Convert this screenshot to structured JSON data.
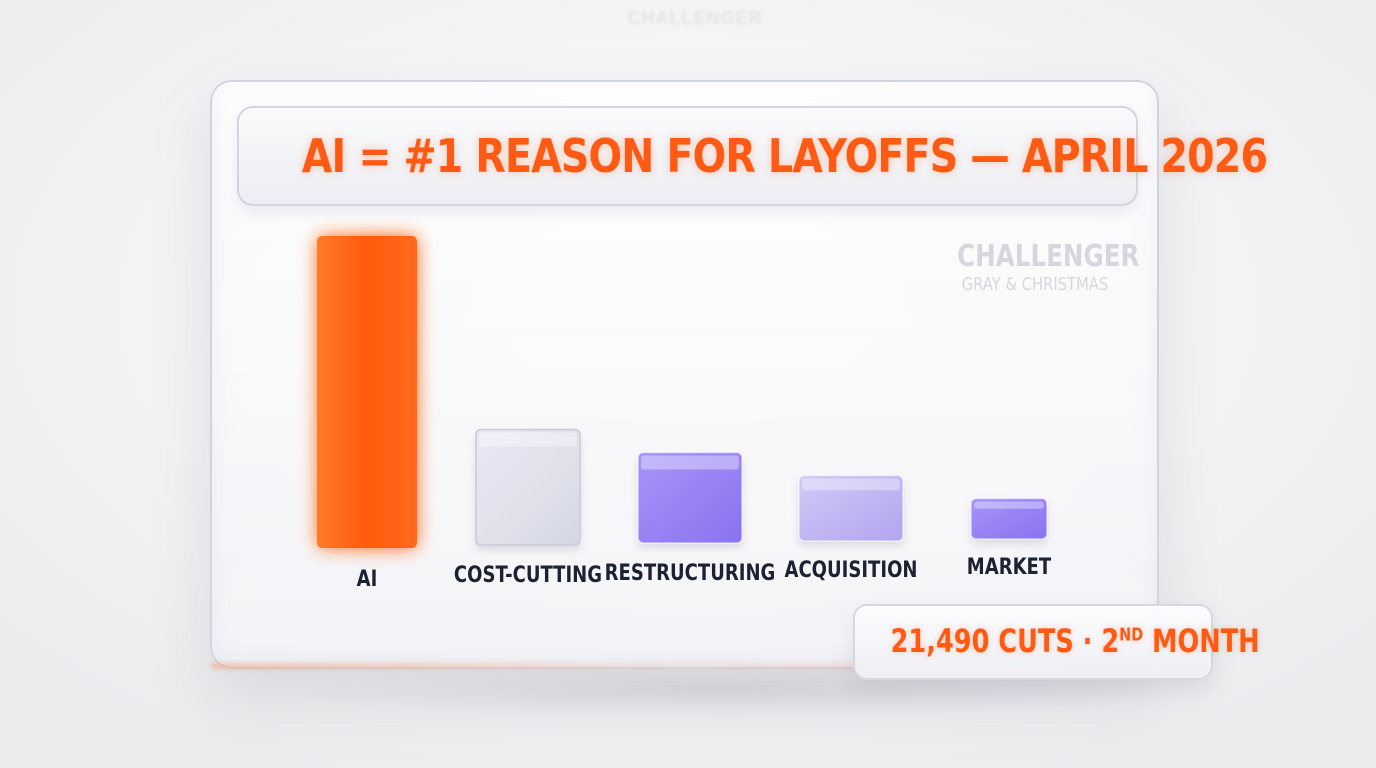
{
  "header": {
    "title": "AI = #1 REASON FOR LAYOFFS — APRIL 2026",
    "ghost_logo": "CHALLENGER"
  },
  "brand": {
    "line1": "CHALLENGER",
    "line2": "GRAY & CHRISTMAS"
  },
  "callout": {
    "main": "21,490 CUTS · 2",
    "superscript": "ND",
    "suffix": " MONTH"
  },
  "colors": {
    "accent": "#ff5a14",
    "ai_bar": "#ff5a0a",
    "purple_bar": "#9a82f5",
    "light_purple_bar": "#c3b8f2",
    "glass_bar": "#dcdce8",
    "label": "#1c2233"
  },
  "chart_data": {
    "type": "bar",
    "title": "AI = #1 REASON FOR LAYOFFS — APRIL 2026",
    "xlabel": "",
    "ylabel": "",
    "categories": [
      "AI",
      "COST-CUTTING",
      "RESTRUCTURING",
      "ACQUISITION",
      "MARKET"
    ],
    "values": [
      100,
      37,
      29,
      21,
      13
    ],
    "ylim": [
      0,
      100
    ],
    "grid": false,
    "bar_styles": [
      "ai",
      "glass",
      "purple",
      "light-purple",
      "purple"
    ]
  }
}
